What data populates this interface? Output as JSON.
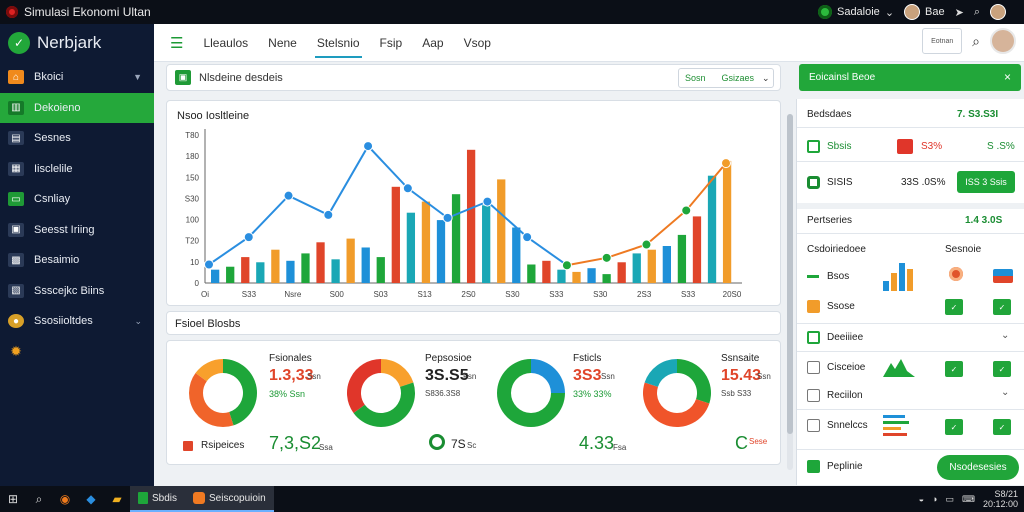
{
  "window": {
    "title": "Simulasi Ekonomi Ultan",
    "account": "Sadaloie",
    "user": "Bae"
  },
  "sidebar": {
    "brand": "Nerbjark",
    "items": [
      {
        "label": "Bkoici",
        "icon": "home-icon",
        "active": false
      },
      {
        "label": "Dekoieno",
        "icon": "chart-icon",
        "active": true
      },
      {
        "label": "Sesnes",
        "icon": "document-icon",
        "active": false
      },
      {
        "label": "Iisclelile",
        "icon": "grid-icon",
        "active": false
      },
      {
        "label": "Csnliay",
        "icon": "wallet-icon",
        "active": false
      },
      {
        "label": "Seesst Iriing",
        "icon": "briefcase-icon",
        "active": false
      },
      {
        "label": "Besaimio",
        "icon": "calendar-icon",
        "active": false
      },
      {
        "label": "Ssscejkc Biins",
        "icon": "report-icon",
        "active": false
      },
      {
        "label": "Ssosiioltdes",
        "icon": "user-icon",
        "active": false
      },
      {
        "label": "",
        "icon": "gear-icon",
        "active": false
      }
    ]
  },
  "topnav": {
    "tabs": [
      "Lleaulos",
      "Nene",
      "Stelsnio",
      "Fsip",
      "Aap",
      "Vsop"
    ],
    "active_index": 2,
    "box_label": "Eotnan"
  },
  "main_header": {
    "title": "Nlsdeine desdeis",
    "button_left": "Sosn",
    "button_right": "Gsizaes"
  },
  "chart": {
    "title": "Nsoo Iosltleine",
    "chart_data": {
      "type": "bar",
      "title": "Nsoo Iosltleine",
      "x_ticks": [
        "Oi",
        "S33",
        "Nsre",
        "S00",
        "S03",
        "S13",
        "2S0",
        "S30",
        "S33",
        "S30",
        "2S3",
        "S33",
        "20S0"
      ],
      "y_ticks": [
        "T80",
        "180",
        "150",
        "S30",
        "100",
        "T20",
        "10",
        "0"
      ],
      "ylim": [
        0,
        200
      ],
      "series": [
        {
          "type": "bar",
          "values": [
            18,
            22,
            35,
            28,
            45,
            30,
            40,
            55,
            32,
            60,
            48,
            35,
            130,
            95,
            110,
            85,
            120,
            180,
            105,
            140,
            75,
            25,
            30,
            18,
            15,
            20,
            12,
            28,
            40,
            45,
            50,
            65,
            90,
            145,
            165
          ]
        },
        {
          "type": "line",
          "values": [
            25,
            62,
            118,
            92,
            185,
            128,
            88,
            110,
            62,
            24,
            34,
            52,
            98,
            162
          ]
        }
      ],
      "colors": {
        "blue": "#1e90d8",
        "green": "#1ea63a",
        "red": "#e0452a",
        "orange": "#f19c2a",
        "teal": "#1aa7b5",
        "line_blue": "#2a8ee0",
        "line_orange": "#ee7a22"
      }
    }
  },
  "section": {
    "title": "Fsioel Blosbs"
  },
  "donuts": [
    {
      "label": "Fsionales",
      "value": "1.3,33",
      "unit": "Ssn",
      "sub": "38% Ssn",
      "value_color": "#e0452a",
      "segments": [
        {
          "value": 45,
          "color": "#1ea63a"
        },
        {
          "value": 40,
          "color": "#f0642a"
        },
        {
          "value": 15,
          "color": "#f8a02c"
        }
      ]
    },
    {
      "label": "Pepsosioe",
      "value": "3S.S5",
      "unit": "Fsn",
      "sub": "S836.3S8",
      "value_color": "#222222",
      "segments": [
        {
          "value": 20,
          "color": "#f8a02c"
        },
        {
          "value": 45,
          "color": "#1ea63a"
        },
        {
          "value": 35,
          "color": "#e0362a"
        }
      ]
    },
    {
      "label": "Fsticls",
      "value": "3S3",
      "unit": "Ssn",
      "sub": "33% 33%",
      "value_color": "#e0452a",
      "segments": [
        {
          "value": 25,
          "color": "#1e90d8"
        },
        {
          "value": 75,
          "color": "#1ea63a"
        }
      ]
    },
    {
      "label": "Ssnsaite",
      "value": "15.43",
      "unit": "Ssn",
      "sub": "Ssb S33",
      "value_color": "#e0452a",
      "segments": [
        {
          "value": 30,
          "color": "#1ea63a"
        },
        {
          "value": 50,
          "color": "#f0542a"
        },
        {
          "value": 20,
          "color": "#1aa7b5"
        }
      ]
    }
  ],
  "donut_footer": {
    "label": "Rsipeices",
    "total": "7,3,S2",
    "total_unit": "Ssa",
    "a": "7S",
    "a_unit": "Sc",
    "b": "4.33",
    "b_unit": "Fsa",
    "c": "C",
    "c_small": "Sese"
  },
  "alert": {
    "text": "Eoicainsl Beoe",
    "close": "×"
  },
  "right_panel": {
    "summary_title": "Bedsdaes",
    "summary_value": "7. S3.S3I",
    "rows": [
      {
        "icon_label": "S",
        "label": "Sbsis",
        "mid": "S3%",
        "right": "S .S%"
      },
      {
        "icon_label": "O",
        "label": "SISIS",
        "mid": "33S .0S%",
        "button": "ISS 3 Ssis"
      }
    ],
    "section2_title": "Pertseries",
    "section2_value": "1.4 3.0S",
    "list_header": "Csdoiriedoee",
    "list_header_right": "Sesnoie",
    "items": [
      {
        "label": "Bsos"
      },
      {
        "label": "Ssose"
      },
      {
        "label": "Deeiiiee"
      },
      {
        "label": "Cisceioe"
      },
      {
        "label": "Reciilon"
      },
      {
        "label": "Snnelccs"
      }
    ],
    "footer_label": "Peplinie",
    "footer_button": "Nsodesesies"
  },
  "taskbar": {
    "apps": [
      "Sbdis",
      "Seiscopuioin"
    ],
    "tray": [
      "S8/21",
      "20:12:00"
    ]
  }
}
